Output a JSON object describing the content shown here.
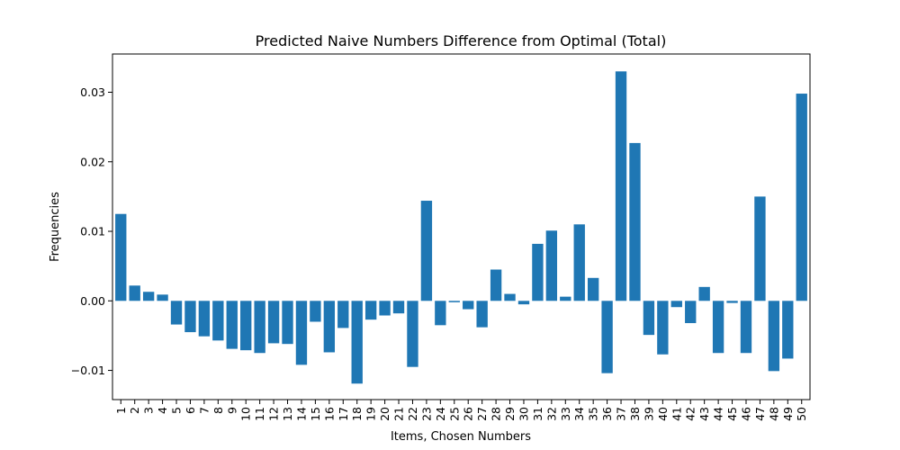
{
  "chart_data": {
    "type": "bar",
    "title": "Predicted Naive Numbers Difference from Optimal (Total)",
    "xlabel": "Items, Chosen Numbers",
    "ylabel": "Frequencies",
    "ylim": [
      -0.0142,
      0.0355
    ],
    "yticks": [
      -0.01,
      0.0,
      0.01,
      0.02,
      0.03
    ],
    "ytick_labels": [
      "−0.01",
      "0.00",
      "0.01",
      "0.02",
      "0.03"
    ],
    "categories": [
      "1",
      "2",
      "3",
      "4",
      "5",
      "6",
      "7",
      "8",
      "9",
      "10",
      "11",
      "12",
      "13",
      "14",
      "15",
      "16",
      "17",
      "18",
      "19",
      "20",
      "21",
      "22",
      "23",
      "24",
      "25",
      "26",
      "27",
      "28",
      "29",
      "30",
      "31",
      "32",
      "33",
      "34",
      "35",
      "36",
      "37",
      "38",
      "39",
      "40",
      "41",
      "42",
      "43",
      "44",
      "45",
      "46",
      "47",
      "48",
      "49",
      "50"
    ],
    "values": [
      0.0125,
      0.0022,
      0.0013,
      0.0009,
      -0.0034,
      -0.0045,
      -0.0051,
      -0.0057,
      -0.0069,
      -0.0071,
      -0.0075,
      -0.0061,
      -0.0062,
      -0.0092,
      -0.003,
      -0.0074,
      -0.0039,
      -0.0119,
      -0.0027,
      -0.0021,
      -0.0018,
      -0.0095,
      0.0144,
      -0.0035,
      -0.0002,
      -0.0012,
      -0.0038,
      0.0045,
      0.001,
      -0.0005,
      0.0082,
      0.0101,
      0.0006,
      0.011,
      0.0033,
      -0.0104,
      0.033,
      0.0227,
      -0.0049,
      -0.0077,
      -0.0009,
      -0.0032,
      0.002,
      -0.0075,
      -0.0003,
      -0.0075,
      0.015,
      -0.0101,
      -0.0083,
      0.0298
    ],
    "bar_color": "#1f77b4",
    "grid": false,
    "legend": "none"
  }
}
